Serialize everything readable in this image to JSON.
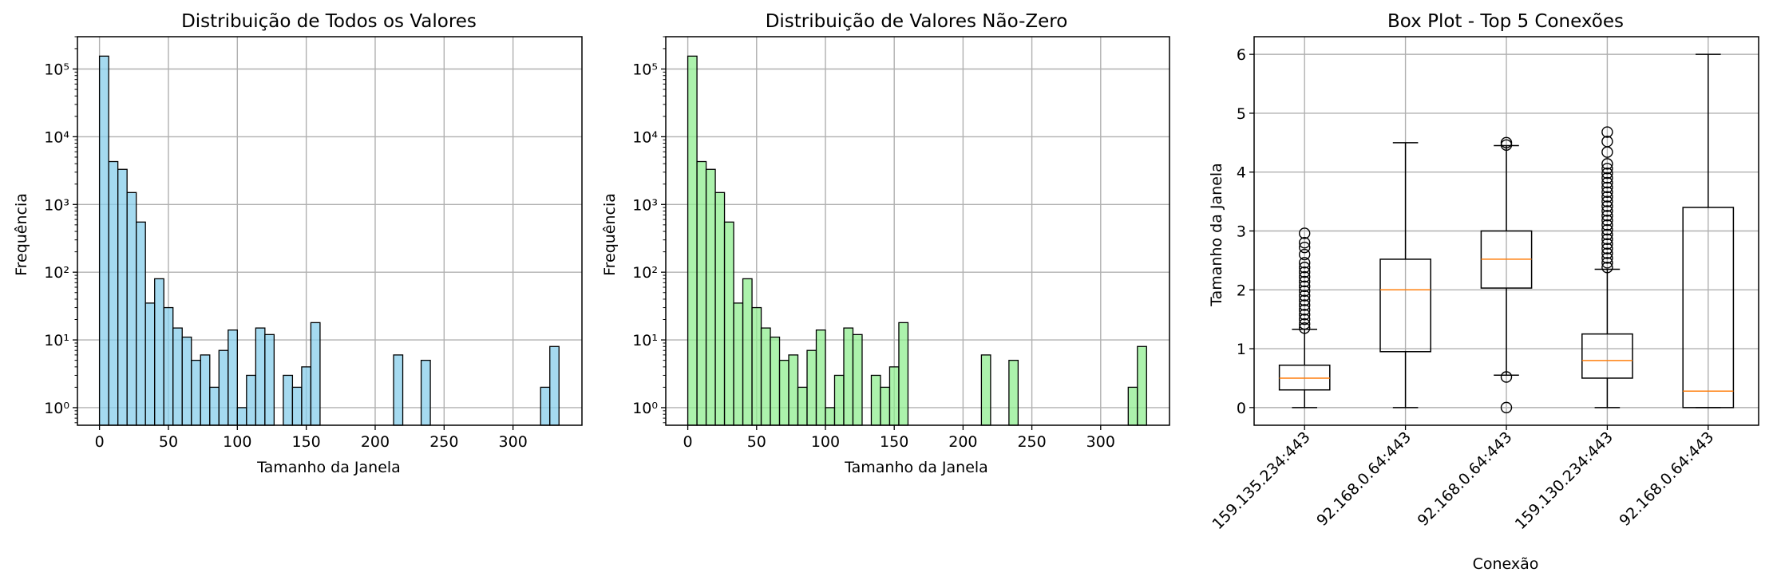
{
  "chart_data": [
    {
      "type": "bar",
      "subtype": "histogram",
      "title": "Distribuição de Todos os Valores",
      "xlabel": "Tamanho da Janela",
      "ylabel": "Frequência",
      "yscale": "log",
      "xlim": [
        -16,
        350
      ],
      "ylim": [
        0.55,
        300000
      ],
      "xticks": [
        0,
        50,
        100,
        150,
        200,
        250,
        300
      ],
      "yticks": [
        1,
        10,
        100,
        1000,
        10000,
        100000
      ],
      "ytick_labels": [
        "10⁰",
        "10¹",
        "10²",
        "10³",
        "10⁴",
        "10⁵"
      ],
      "grid": true,
      "bar_color": "#87CEEB",
      "bin_edges_start": 0,
      "bin_width": 6.667,
      "values": [
        155000,
        4300,
        3300,
        1500,
        550,
        35,
        80,
        30,
        15,
        11,
        5,
        6,
        2,
        7,
        14,
        1,
        3,
        15,
        12,
        0,
        3,
        2,
        4,
        18,
        0,
        0,
        0,
        0,
        0,
        0,
        0,
        0,
        6,
        0,
        0,
        5,
        0,
        0,
        0,
        0,
        0,
        0,
        0,
        0,
        0,
        0,
        0,
        0,
        2,
        8
      ]
    },
    {
      "type": "bar",
      "subtype": "histogram",
      "title": "Distribuição de Valores Não-Zero",
      "xlabel": "Tamanho da Janela",
      "ylabel": "Frequência",
      "yscale": "log",
      "xlim": [
        -16,
        350
      ],
      "ylim": [
        0.55,
        300000
      ],
      "xticks": [
        0,
        50,
        100,
        150,
        200,
        250,
        300
      ],
      "yticks": [
        1,
        10,
        100,
        1000,
        10000,
        100000
      ],
      "ytick_labels": [
        "10⁰",
        "10¹",
        "10²",
        "10³",
        "10⁴",
        "10⁵"
      ],
      "grid": true,
      "bar_color": "#90EE90",
      "bin_edges_start": 0,
      "bin_width": 6.667,
      "values": [
        155000,
        4300,
        3300,
        1500,
        550,
        35,
        80,
        30,
        15,
        11,
        5,
        6,
        2,
        7,
        14,
        1,
        3,
        15,
        12,
        0,
        3,
        2,
        4,
        18,
        0,
        0,
        0,
        0,
        0,
        0,
        0,
        0,
        6,
        0,
        0,
        5,
        0,
        0,
        0,
        0,
        0,
        0,
        0,
        0,
        0,
        0,
        0,
        0,
        2,
        8
      ]
    },
    {
      "type": "box",
      "title": "Box Plot - Top 5 Conexões",
      "xlabel": "Conexão",
      "ylabel": "Tamanho da Janela",
      "ylim": [
        -0.3,
        6.3
      ],
      "yticks": [
        0,
        1,
        2,
        3,
        4,
        5,
        6
      ],
      "grid": true,
      "categories": [
        "159.135.234:443",
        "92.168.0.64:443",
        "92.168.0.64:443",
        "159.130.234:443",
        "92.168.0.64:443"
      ],
      "boxes": [
        {
          "whislo": 0,
          "q1": 0.3,
          "med": 0.5,
          "q3": 0.72,
          "whishi": 1.33,
          "fliers": [
            1.35,
            1.42,
            1.5,
            1.58,
            1.66,
            1.74,
            1.82,
            1.9,
            1.98,
            2.06,
            2.14,
            2.22,
            2.3,
            2.38,
            2.46,
            2.6,
            2.72,
            2.8,
            2.96
          ]
        },
        {
          "whislo": 0,
          "q1": 0.95,
          "med": 2.0,
          "q3": 2.52,
          "whishi": 4.5,
          "fliers": []
        },
        {
          "whislo": 0.55,
          "q1": 2.03,
          "med": 2.52,
          "q3": 3.0,
          "whishi": 4.45,
          "fliers": [
            0.0,
            0.52,
            4.46,
            4.5
          ]
        },
        {
          "whislo": 0,
          "q1": 0.5,
          "med": 0.8,
          "q3": 1.25,
          "whishi": 2.35,
          "fliers": [
            2.38,
            2.46,
            2.54,
            2.62,
            2.7,
            2.78,
            2.86,
            2.94,
            3.02,
            3.1,
            3.18,
            3.26,
            3.34,
            3.42,
            3.5,
            3.58,
            3.66,
            3.74,
            3.82,
            3.9,
            3.98,
            4.06,
            4.14,
            4.34,
            4.52,
            4.68
          ]
        },
        {
          "whislo": 0,
          "q1": 0.0,
          "med": 0.28,
          "q3": 3.4,
          "whishi": 6.0,
          "fliers": []
        }
      ],
      "box_edge_color": "#000000",
      "median_color": "#ff7f0e"
    }
  ]
}
